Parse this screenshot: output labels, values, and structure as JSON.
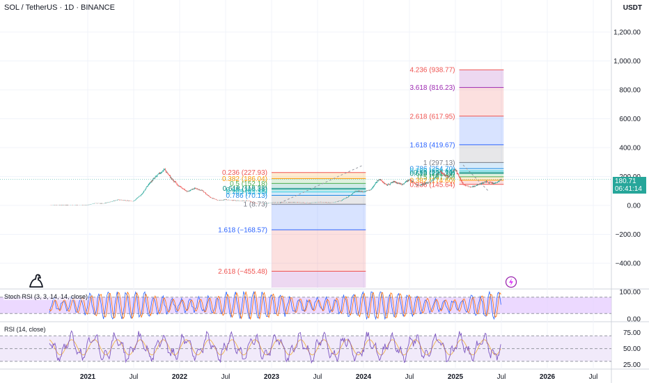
{
  "header": {
    "symbol_title": "SOL / TetherUS · 1D · BINANCE",
    "currency": "USDT"
  },
  "current_price": {
    "value": "180.71",
    "countdown": "06:41:14"
  },
  "colors": {
    "up": "#26a69a",
    "down": "#ef5350",
    "stoch_k": "#2962ff",
    "stoch_d": "#ff6d00",
    "rsi_line": "#7e57c2",
    "rsi_ma": "#f0b24a",
    "stoch_band": "#e6ccff",
    "rsi_band": "#f1eafa"
  },
  "icons": {
    "logo": "dinosaur-icon",
    "alert": "lightning-icon"
  },
  "panes": {
    "stoch_label": "Stoch RSI (3, 3, 14, 14, close)",
    "rsi_label": "RSI (14, close)"
  },
  "chart_data": [
    {
      "type": "line",
      "title": "SOL / TetherUS · 1D · BINANCE",
      "x_labels": [
        "2021",
        "Jul",
        "2022",
        "Jul",
        "2023",
        "Jul",
        "2024",
        "Jul",
        "2025",
        "Jul",
        "2026",
        "Jul"
      ],
      "y_ticks": [
        "1,200.00",
        "1,000.00",
        "800.00",
        "600.00",
        "400.00",
        "200.00",
        "0.00",
        "−200.00",
        "−400.00"
      ],
      "ylim": [
        -560,
        1300
      ],
      "series": [
        {
          "points": [
            [
              "2020-08",
              3
            ],
            [
              "2020-10",
              2
            ],
            [
              "2020-12",
              2
            ],
            [
              "2021-01",
              3
            ],
            [
              "2021-02",
              15
            ],
            [
              "2021-03",
              14
            ],
            [
              "2021-04",
              25
            ],
            [
              "2021-05",
              40
            ],
            [
              "2021-06",
              33
            ],
            [
              "2021-07",
              30
            ],
            [
              "2021-08",
              75
            ],
            [
              "2021-09",
              150
            ],
            [
              "2021-10",
              205
            ],
            [
              "2021-11",
              250
            ],
            [
              "2021-12",
              180
            ],
            [
              "2022-01",
              130
            ],
            [
              "2022-02",
              95
            ],
            [
              "2022-03",
              120
            ],
            [
              "2022-04",
              100
            ],
            [
              "2022-05",
              55
            ],
            [
              "2022-06",
              35
            ],
            [
              "2022-07",
              40
            ],
            [
              "2022-08",
              35
            ],
            [
              "2022-09",
              33
            ],
            [
              "2022-10",
              31
            ],
            [
              "2022-11",
              14
            ],
            [
              "2022-12",
              10
            ],
            [
              "2023-01",
              20
            ],
            [
              "2023-02",
              22
            ],
            [
              "2023-03",
              21
            ],
            [
              "2023-04",
              22
            ],
            [
              "2023-05",
              20
            ],
            [
              "2023-06",
              17
            ],
            [
              "2023-07",
              24
            ],
            [
              "2023-08",
              21
            ],
            [
              "2023-09",
              19
            ],
            [
              "2023-10",
              32
            ],
            [
              "2023-11",
              60
            ],
            [
              "2023-12",
              100
            ],
            [
              "2024-01",
              95
            ],
            [
              "2024-02",
              110
            ],
            [
              "2024-03",
              185
            ],
            [
              "2024-04",
              140
            ],
            [
              "2024-05",
              165
            ],
            [
              "2024-06",
              145
            ],
            [
              "2024-07",
              180
            ],
            [
              "2024-08",
              140
            ],
            [
              "2024-09",
              150
            ],
            [
              "2024-10",
              170
            ],
            [
              "2024-11",
              235
            ],
            [
              "2024-12",
              195
            ],
            [
              "2025-01",
              250
            ],
            [
              "2025-02",
              145
            ],
            [
              "2025-03",
              125
            ],
            [
              "2025-04",
              145
            ],
            [
              "2025-05",
              165
            ],
            [
              "2025-06",
              150
            ],
            [
              "2025-07",
              180
            ]
          ]
        }
      ],
      "fib_retracement_1": {
        "levels": [
          {
            "label": "0.236 (227.93)",
            "value": 227.93,
            "color": "#ef5350"
          },
          {
            "label": "0.382 (186.04)",
            "value": 186.04,
            "color": "#ff9800"
          },
          {
            "label": "0.5 (152.18)",
            "value": 152.18,
            "color": "#4caf50"
          },
          {
            "label": "0.618 (118.33)",
            "value": 118.33,
            "color": "#00897b"
          },
          {
            "label": "0.65 (109.15)",
            "value": 109.15,
            "color": "#26a69a"
          },
          {
            "label": "0.705 (93.36)",
            "value": 93.36,
            "color": "#26c6da"
          },
          {
            "label": "0.786 (70.13)",
            "value": 70.13,
            "color": "#1e88e5"
          },
          {
            "label": "1 (8.73)",
            "value": 8.73,
            "color": "#787b86"
          },
          {
            "label": "1.618 (−168.57)",
            "value": -168.57,
            "color": "#2962ff"
          },
          {
            "label": "2.618 (−455.48)",
            "value": -455.48,
            "color": "#ef5350"
          }
        ]
      },
      "fib_retracement_2": {
        "levels": [
          {
            "label": "4.236 (938.77)",
            "value": 938.77,
            "color": "#ef5350"
          },
          {
            "label": "3.618 (816.23)",
            "value": 816.23,
            "color": "#9c27b0"
          },
          {
            "label": "2.618 (617.95)",
            "value": 617.95,
            "color": "#ef5350"
          },
          {
            "label": "1.618 (419.67)",
            "value": 419.67,
            "color": "#2962ff"
          },
          {
            "label": "1 (297.13)",
            "value": 297.13,
            "color": "#787b86"
          },
          {
            "label": "0.786 (254.70)",
            "value": 254.7,
            "color": "#1e88e5"
          },
          {
            "label": "0.705 (238.64)",
            "value": 238.64,
            "color": "#26c6da"
          },
          {
            "label": "0.65 (227.73)",
            "value": 227.73,
            "color": "#26a69a"
          },
          {
            "label": "0.618 (221.39)",
            "value": 221.39,
            "color": "#00897b"
          },
          {
            "label": "0.5 (197.99)",
            "value": 197.99,
            "color": "#4caf50"
          },
          {
            "label": "0.382 (174.60)",
            "value": 174.6,
            "color": "#ff9800"
          },
          {
            "label": "0.236 (145.64)",
            "value": 145.64,
            "color": "#ef5350"
          }
        ]
      }
    },
    {
      "type": "line",
      "title": "Stoch RSI (3, 3, 14, 14, close)",
      "y_ticks": [
        "100.00",
        "0.00"
      ],
      "ylim": [
        -5,
        105
      ],
      "band": [
        20,
        80
      ]
    },
    {
      "type": "line",
      "title": "RSI (14, close)",
      "y_ticks": [
        "75.00",
        "50.00",
        "25.00"
      ],
      "ylim": [
        20,
        90
      ],
      "band": [
        30,
        70
      ]
    }
  ]
}
